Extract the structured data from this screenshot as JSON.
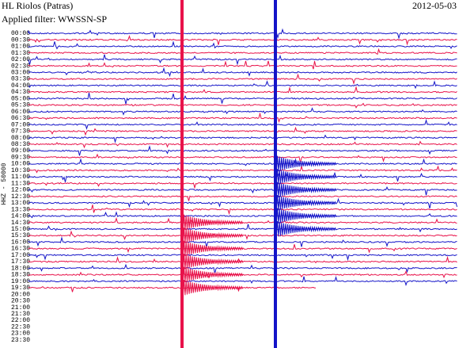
{
  "chart_data": {
    "type": "helicorder",
    "title": "HL Riolos (Patras)",
    "date": "2012-05-03",
    "filter": "Applied filter: WWSSN-SP",
    "y_label": "HHZ - 50000",
    "categories": [
      "00:00",
      "00:30",
      "01:00",
      "01:30",
      "02:00",
      "02:30",
      "03:00",
      "03:30",
      "04:00",
      "04:30",
      "05:00",
      "05:30",
      "06:00",
      "06:30",
      "07:00",
      "07:30",
      "08:00",
      "08:30",
      "09:00",
      "09:30",
      "10:00",
      "10:30",
      "11:00",
      "11:30",
      "12:00",
      "12:30",
      "13:00",
      "13:30",
      "14:00",
      "14:30",
      "15:00",
      "15:30",
      "16:00",
      "16:30",
      "17:00",
      "17:30",
      "18:00",
      "18:30",
      "19:00",
      "19:30",
      "20:00",
      "20:30",
      "21:00",
      "21:30",
      "22:00",
      "22:30",
      "23:00",
      "23:30"
    ],
    "colors": [
      "#1414c8",
      "#e8124a"
    ]
  }
}
